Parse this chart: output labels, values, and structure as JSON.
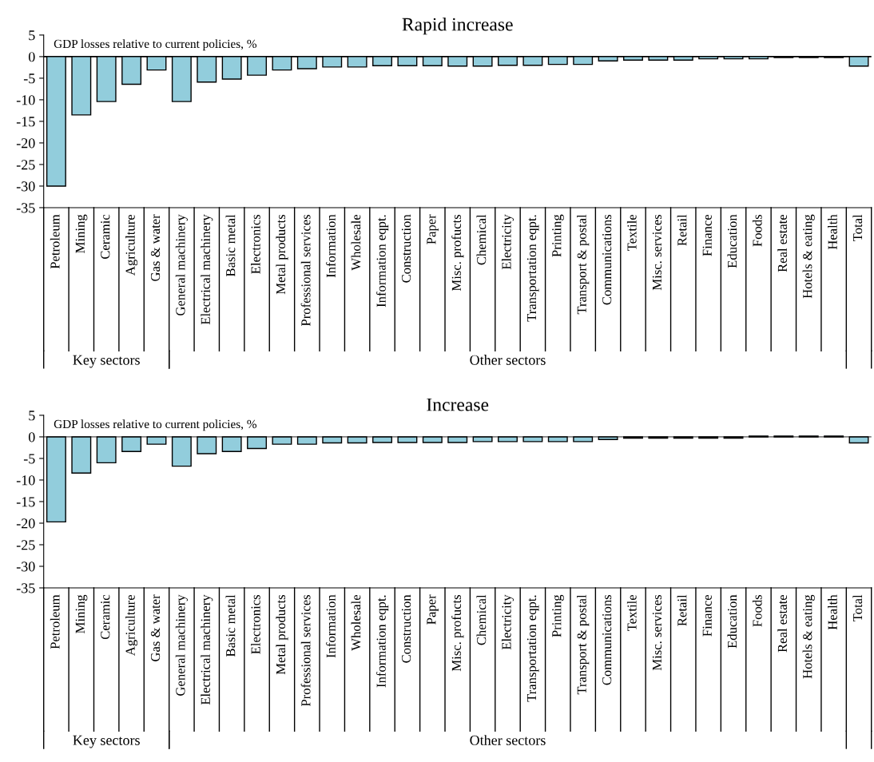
{
  "chart_data": [
    {
      "type": "bar",
      "title": "Rapid increase",
      "categories": [
        "Petroleum",
        "Mining",
        "Ceramic",
        "Agriculture",
        "Gas & water",
        "General machinery",
        "Electrical machinery",
        "Basic metal",
        "Electronics",
        "Metal products",
        "Professional services",
        "Information",
        "Wholesale",
        "Information eqpt.",
        "Construction",
        "Paper",
        "Misc. profucts",
        "Chemical",
        "Electricity",
        "Transportation eqpt.",
        "Printing",
        "Transport & postal",
        "Communications",
        "Textile",
        "Misc. services",
        "Retail",
        "Finance",
        "Education",
        "Foods",
        "Real estate",
        "Hotels & eating",
        "Health",
        "Total"
      ],
      "values": [
        -30,
        -13.5,
        -10.4,
        -6.4,
        -3.1,
        -10.4,
        -5.9,
        -5.2,
        -4.3,
        -3.1,
        -2.8,
        -2.4,
        -2.4,
        -2.1,
        -2.1,
        -2.1,
        -2.2,
        -2.2,
        -2.0,
        -2.0,
        -1.8,
        -1.8,
        -1.0,
        -0.8,
        -0.8,
        -0.8,
        -0.5,
        -0.5,
        -0.5,
        -0.2,
        -0.2,
        -0.2,
        -2.2
      ],
      "color": "#92cddc",
      "ylim": [
        -35,
        5
      ],
      "yticks": [
        -35,
        -30,
        -25,
        -20,
        -15,
        -10,
        -5,
        0,
        5
      ],
      "grid": false,
      "ref_lines": [
        {
          "axis": "y",
          "value": 0,
          "color": "#000000"
        }
      ],
      "annotations": [
        "GDP losses relative to current policies, %",
        "Key sectors",
        "Other sectors"
      ]
    },
    {
      "type": "bar",
      "title": "Increase",
      "categories": [
        "Petroleum",
        "Mining",
        "Ceramic",
        "Agriculture",
        "Gas & water",
        "General machinery",
        "Electrical machinery",
        "Basic metal",
        "Electronics",
        "Metal products",
        "Professional services",
        "Information",
        "Wholesale",
        "Information eqpt.",
        "Construction",
        "Paper",
        "Misc. profucts",
        "Chemical",
        "Electricity",
        "Transportation eqpt.",
        "Printing",
        "Transport & postal",
        "Communications",
        "Textile",
        "Misc. services",
        "Retail",
        "Finance",
        "Education",
        "Foods",
        "Real estate",
        "Hotels & eating",
        "Health",
        "Total"
      ],
      "values": [
        -19.7,
        -8.4,
        -6.0,
        -3.4,
        -1.7,
        -6.8,
        -3.9,
        -3.4,
        -2.7,
        -1.7,
        -1.7,
        -1.4,
        -1.4,
        -1.3,
        -1.3,
        -1.3,
        -1.3,
        -1.1,
        -1.1,
        -1.1,
        -1.1,
        -1.1,
        -0.6,
        -0.3,
        -0.3,
        -0.3,
        -0.3,
        -0.3,
        0.2,
        0.2,
        0.2,
        0.2,
        -1.4
      ],
      "color": "#92cddc",
      "ylim": [
        -35,
        5
      ],
      "yticks": [
        -35,
        -30,
        -25,
        -20,
        -15,
        -10,
        -5,
        0,
        5
      ],
      "grid": false,
      "ref_lines": [
        {
          "axis": "y",
          "value": 0,
          "color": "#808080"
        }
      ],
      "annotations": [
        "GDP losses relative to current policies, %",
        "Key sectors",
        "Other sectors"
      ]
    }
  ]
}
